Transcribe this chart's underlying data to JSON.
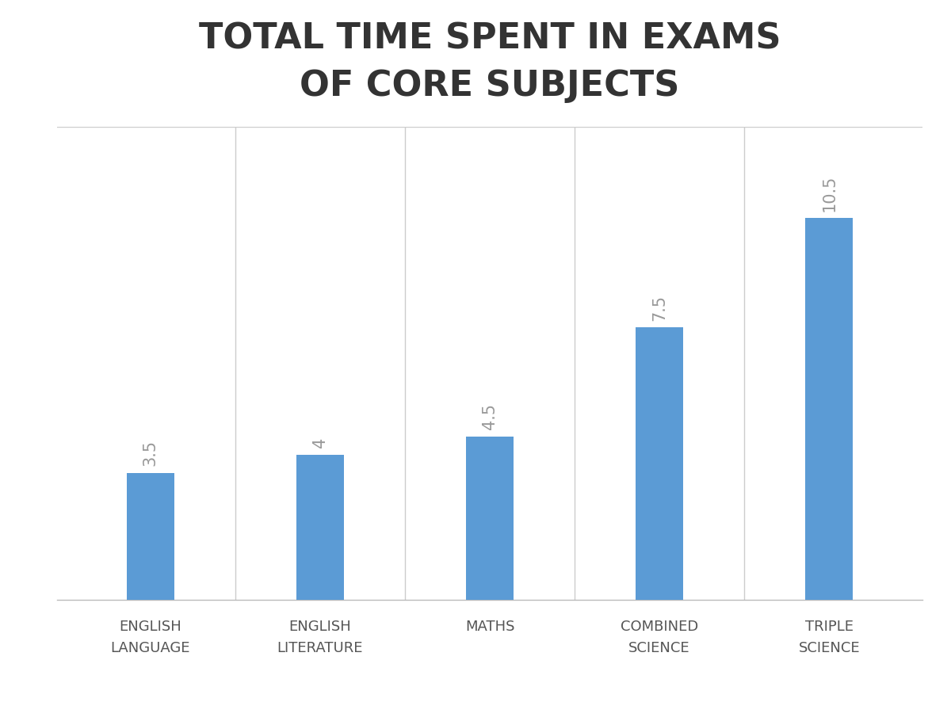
{
  "title_line1": "TOTAL TIME SPENT IN EXAMS",
  "title_line2": "OF CORE SUBJECTS",
  "categories": [
    "ENGLISH\nLANGUAGE",
    "ENGLISH\nLITERATURE",
    "MATHS",
    "COMBINED\nSCIENCE",
    "TRIPLE\nSCIENCE"
  ],
  "values": [
    3.5,
    4.0,
    4.5,
    7.5,
    10.5
  ],
  "bar_color": "#5b9bd5",
  "label_color": "#999999",
  "background_color": "#ffffff",
  "plot_background_color": "#ffffff",
  "title_color": "#333333",
  "xlabel_color": "#555555",
  "ylim": [
    0,
    13
  ],
  "bar_width": 0.28,
  "title_fontsize": 32,
  "tick_label_fontsize": 13,
  "value_label_fontsize": 15
}
